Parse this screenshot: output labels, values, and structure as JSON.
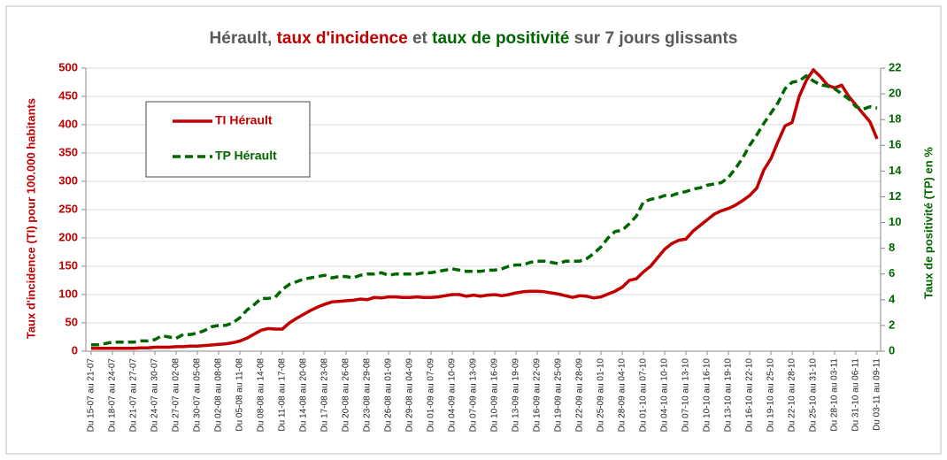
{
  "chart_data": {
    "type": "line",
    "title_parts": [
      {
        "text": "Hérault, ",
        "color": "#595959"
      },
      {
        "text": "taux d'incidence",
        "color": "#c00000"
      },
      {
        "text": " et ",
        "color": "#595959"
      },
      {
        "text": "taux de positivité",
        "color": "#006600"
      },
      {
        "text": " sur 7 jours glissants",
        "color": "#595959"
      }
    ],
    "ylabel": "Taux d'incidence (TI) pour 100.000 habitants",
    "y2label": "Taux de positivité (TP) en %",
    "ylabel_color": "#c00000",
    "y2label_color": "#006600",
    "categories": [
      "Du 15-07 au 21-07",
      null,
      null,
      "Du 18-07 au 24-07",
      null,
      null,
      "Du 21-07 au 27-07",
      null,
      null,
      "Du 24-07 au 30-07",
      null,
      null,
      "Du 27-07 au 02-08",
      null,
      null,
      "Du 30-07 au 05-08",
      null,
      null,
      "Du 02-08 au 08-08",
      null,
      null,
      "Du 05-08 au 11-08",
      null,
      null,
      "Du 08-08 au 14-08",
      null,
      null,
      "Du 11-08 au 17-08",
      null,
      null,
      "Du 14-08 au 20-08",
      null,
      null,
      "Du 17-08 au 23-08",
      null,
      null,
      "Du 20-08 au 26-08",
      null,
      null,
      "Du 23-08 au 29-08",
      null,
      null,
      "Du 26-08 au 01-09",
      null,
      null,
      "Du 29-08 au 04-09",
      null,
      null,
      "Du 01-09 au 07-09",
      null,
      null,
      "Du 04-09 au 10-09",
      null,
      null,
      "Du 07-09 au 13-09",
      null,
      null,
      "Du 10-09 au 16-09",
      null,
      null,
      "Du 13-09 au 19-09",
      null,
      null,
      "Du 16-09 au 22-09",
      null,
      null,
      "Du 19-09 au 25-09",
      null,
      null,
      "Du 22-09 au 28-09",
      null,
      null,
      "Du 25-09 au 01-10",
      null,
      null,
      "Du 28-09 au 04-10",
      null,
      null,
      "Du 01-10 au 07-10",
      null,
      null,
      "Du 04-10 au 10-10",
      null,
      null,
      "Du 07-10 au 13-10",
      null,
      null,
      "Du 10-10 au 16-10",
      null,
      null,
      "Du 13-10 au 19-10",
      null,
      null,
      "Du 16-10 au 22-10",
      null,
      null,
      "Du 19-10 au 25-10",
      null,
      null,
      "Du 22-10 au 28-10",
      null,
      null,
      "Du 25-10 au 31-10",
      null,
      null,
      "Du 28-10 au 03-11",
      null,
      null,
      "Du 31-10 au 06-11",
      null,
      null,
      "Du 03-11 au 09-11"
    ],
    "series": [
      {
        "name": "TI Hérault",
        "color": "#c00000",
        "dashed": false,
        "values": [
          5,
          5,
          5,
          5,
          5,
          5,
          5,
          6,
          6,
          7,
          7,
          7,
          8,
          8,
          9,
          9,
          10,
          11,
          12,
          13,
          15,
          18,
          23,
          30,
          37,
          40,
          39,
          39,
          50,
          58,
          65,
          72,
          78,
          83,
          87,
          88,
          89,
          90,
          92,
          91,
          95,
          94,
          96,
          96,
          95,
          95,
          96,
          95,
          95,
          96,
          98,
          100,
          100,
          97,
          99,
          97,
          99,
          100,
          98,
          100,
          103,
          105,
          106,
          106,
          105,
          103,
          101,
          98,
          95,
          98,
          97,
          94,
          96,
          101,
          106,
          113,
          125,
          128,
          140,
          150,
          165,
          180,
          190,
          196,
          198,
          212,
          222,
          232,
          242,
          248,
          252,
          258,
          266,
          275,
          288,
          320,
          340,
          370,
          398,
          404,
          450,
          478,
          497,
          485,
          470,
          465,
          470,
          450,
          435,
          420,
          405,
          375
        ]
      },
      {
        "name": "TP Hérault",
        "color": "#006600",
        "dashed": true,
        "axis": "y2",
        "values": [
          0.5,
          0.5,
          0.6,
          0.7,
          0.7,
          0.7,
          0.7,
          0.8,
          0.8,
          0.9,
          1.2,
          1.1,
          1.0,
          1.3,
          1.3,
          1.4,
          1.6,
          1.9,
          2.0,
          2.0,
          2.2,
          2.6,
          3.2,
          3.6,
          4.1,
          4.1,
          4.2,
          4.8,
          5.2,
          5.4,
          5.6,
          5.7,
          5.8,
          5.9,
          5.7,
          5.8,
          5.8,
          5.7,
          5.9,
          6.0,
          6.0,
          6.1,
          5.9,
          6.0,
          6.0,
          6.0,
          6.0,
          6.1,
          6.1,
          6.2,
          6.3,
          6.4,
          6.3,
          6.2,
          6.2,
          6.2,
          6.3,
          6.3,
          6.4,
          6.6,
          6.7,
          6.7,
          6.9,
          7.0,
          7.0,
          6.9,
          6.8,
          7.0,
          7.0,
          7.0,
          7.2,
          7.6,
          8.1,
          8.8,
          9.3,
          9.4,
          9.9,
          10.5,
          11.6,
          11.8,
          11.9,
          12.1,
          12.1,
          12.3,
          12.4,
          12.6,
          12.7,
          12.9,
          13.0,
          13.1,
          13.5,
          14.2,
          15.0,
          16.0,
          16.8,
          17.7,
          18.5,
          19.3,
          20.4,
          20.9,
          21.0,
          21.4,
          21.0,
          20.7,
          20.6,
          20.4,
          20.0,
          19.6,
          19.0,
          18.8,
          19.0,
          18.9
        ]
      }
    ],
    "ylim": [
      0,
      500
    ],
    "yticks": [
      0,
      50,
      100,
      150,
      200,
      250,
      300,
      350,
      400,
      450,
      500
    ],
    "y2lim": [
      0,
      22
    ],
    "y2ticks": [
      0,
      2,
      4,
      6,
      8,
      10,
      12,
      14,
      16,
      18,
      20,
      22
    ],
    "grid": true,
    "legend": "upper left"
  }
}
